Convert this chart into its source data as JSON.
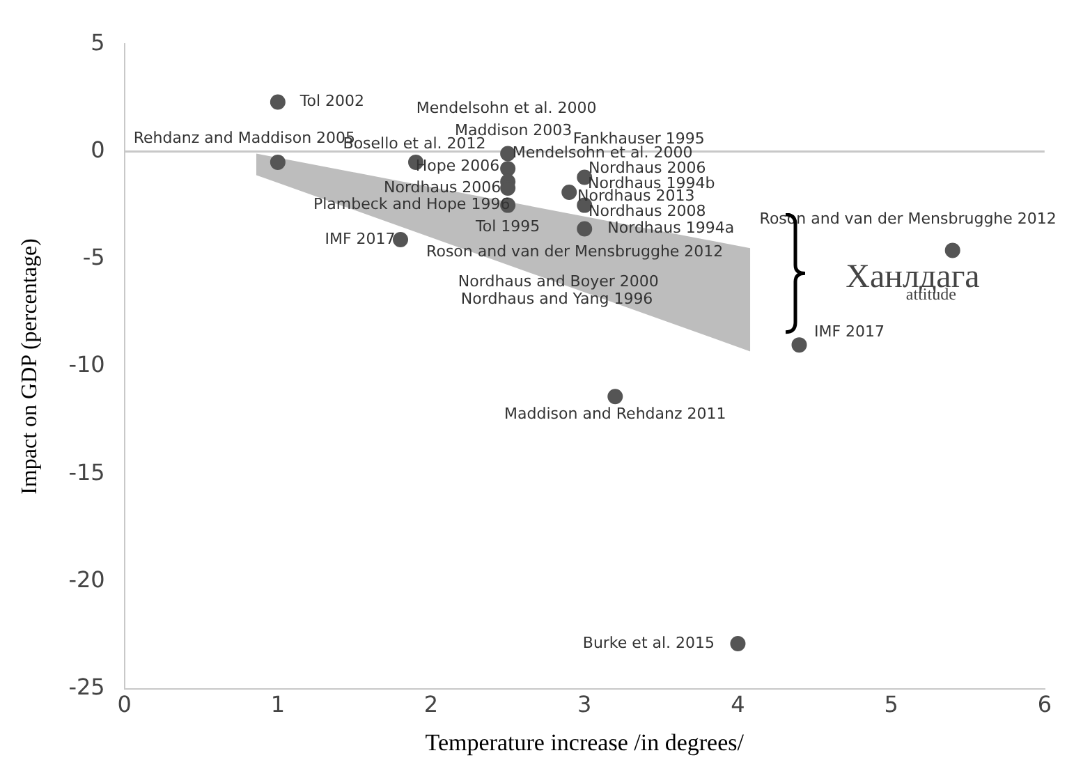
{
  "chart_data": {
    "type": "scatter",
    "xlabel": "Temperature increase /in degrees/",
    "ylabel": "Impact on GDP (percentage)",
    "xlim": [
      0,
      6
    ],
    "xticks": [
      0,
      1,
      2,
      3,
      4,
      5,
      6
    ],
    "ylim": [
      -25,
      5
    ],
    "yticks": [
      -25,
      -20,
      -15,
      -10,
      -5,
      0,
      5
    ],
    "grid": false,
    "legend": false,
    "ref_lines": [
      {
        "axis": "y",
        "value": 0,
        "color": "#c8c8c8"
      }
    ],
    "series": [
      {
        "type": "line",
        "color": "#bdbdbd",
        "x": [
          0.86,
          4.08
        ],
        "values": [
          null,
          null
        ],
        "upper": [
          -0.1,
          -4.5
        ],
        "lower": [
          -1.1,
          -9.3
        ]
      },
      {
        "color": "#555555",
        "marker": "circle",
        "x": [
          1.0,
          1.0,
          1.9,
          1.8,
          2.5,
          2.5,
          2.5,
          2.5,
          2.5,
          3.0,
          2.9,
          3.0,
          3.0,
          5.4,
          4.4,
          3.2,
          4.0
        ],
        "values": [
          2.3,
          -0.5,
          -0.5,
          -4.1,
          -0.1,
          -0.8,
          -1.4,
          -1.7,
          -2.5,
          -1.2,
          -1.9,
          -2.5,
          -3.6,
          -4.6,
          -9.0,
          -11.4,
          -22.9
        ]
      }
    ],
    "annotations": [
      {
        "text": "Tol 2002",
        "x": 1.0,
        "y": 2.3
      },
      {
        "text": "Mendelsohn et al. 2000",
        "x": 2.5,
        "y": -0.1
      },
      {
        "text": "Rehdanz and Maddison 2005",
        "x": 1.0,
        "y": -0.5
      },
      {
        "text": "Maddison 2003",
        "x": 2.5,
        "y": -0.1
      },
      {
        "text": "Fankhauser 1995",
        "x": 3.0,
        "y": -1.2
      },
      {
        "text": "Bosello et al. 2012",
        "x": 1.9,
        "y": -0.5
      },
      {
        "text": "Mendelsohn et al. 2000",
        "x": 2.5,
        "y": -0.1
      },
      {
        "text": "Hope 2006",
        "x": 1.9,
        "y": -0.5
      },
      {
        "text": "Nordhaus 2006",
        "x": 3.0,
        "y": -1.2
      },
      {
        "text": "Nordhaus 1994b",
        "x": 3.0,
        "y": -1.2
      },
      {
        "text": "Nordhaus 2006",
        "x": 2.5,
        "y": -1.4
      },
      {
        "text": "Nordhaus 2013",
        "x": 2.9,
        "y": -1.9
      },
      {
        "text": "Plambeck and Hope 1996",
        "x": 2.5,
        "y": -2.5
      },
      {
        "text": "Nordhaus 2008",
        "x": 3.0,
        "y": -2.5
      },
      {
        "text": "Tol 1995",
        "x": 2.5,
        "y": -2.5
      },
      {
        "text": "Nordhaus 1994a",
        "x": 3.0,
        "y": -3.6
      },
      {
        "text": "IMF 2017",
        "x": 1.8,
        "y": -4.1
      },
      {
        "text": "Roson and van der Mensbrugghe 2012",
        "x": 3.0,
        "y": -3.6
      },
      {
        "text": "Roson and van der Mensbrugghe 2012",
        "x": 5.4,
        "y": -4.6
      },
      "Nordhaus and Boyer 2000",
      "Nordhaus and Yang 1996",
      {
        "text": "IMF 2017",
        "x": 4.4,
        "y": -9.0
      },
      {
        "text": "Maddison and Rehdanz 2011",
        "x": 3.2,
        "y": -11.4
      },
      {
        "text": "Burke et al. 2015",
        "x": 4.0,
        "y": -22.9
      },
      "Ханлдага$_{attitude}$"
    ]
  }
}
